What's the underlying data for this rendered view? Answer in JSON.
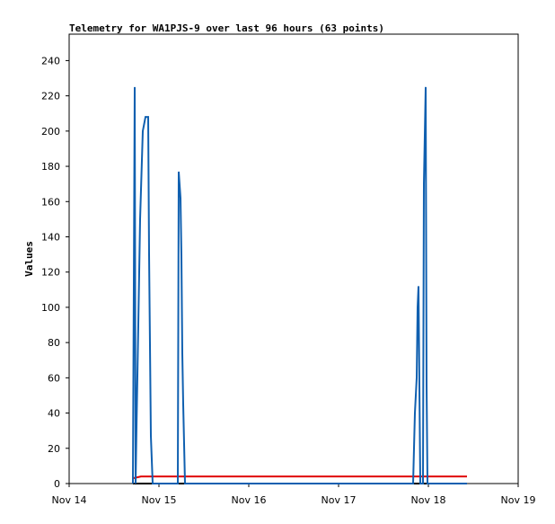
{
  "chart_data": {
    "type": "line",
    "title": "Telemetry for WA1PJS-9 over last 96 hours (63 points)",
    "y_label": "Values",
    "xlim": [
      0,
      5
    ],
    "xticks": [
      {
        "value": 0,
        "label": "Nov 14"
      },
      {
        "value": 1,
        "label": "Nov 15"
      },
      {
        "value": 2,
        "label": "Nov 16"
      },
      {
        "value": 3,
        "label": "Nov 17"
      },
      {
        "value": 4,
        "label": "Nov 18"
      },
      {
        "value": 5,
        "label": "Nov 19"
      }
    ],
    "ylim": [
      0,
      255
    ],
    "yticks": [
      0,
      20,
      40,
      60,
      80,
      100,
      120,
      140,
      160,
      180,
      200,
      220,
      240
    ],
    "series": [
      {
        "color": "#000000",
        "x": [
          0.71,
          4.43
        ],
        "values": [
          0,
          0
        ]
      },
      {
        "color": "#e00000",
        "x": [
          0.71,
          0.8,
          4.43
        ],
        "values": [
          3,
          4,
          4
        ]
      },
      {
        "color": "#1060b0",
        "x": [
          0.71,
          0.73,
          0.74,
          0.75,
          0.77,
          0.79,
          0.82,
          0.85,
          0.88,
          0.89,
          0.91,
          0.93,
          1.21,
          1.22,
          1.24,
          1.25,
          1.26,
          1.27,
          1.29,
          3.83,
          3.85,
          3.87,
          3.88,
          3.89,
          3.91,
          3.94,
          3.95,
          3.97,
          3.98,
          3.99,
          4.43
        ],
        "values": [
          0,
          225,
          0,
          32,
          90,
          150,
          200,
          208,
          208,
          130,
          27,
          0,
          0,
          177,
          162,
          130,
          74,
          45,
          0,
          0,
          40,
          60,
          100,
          112,
          0,
          0,
          170,
          225,
          56,
          0,
          0
        ]
      }
    ]
  }
}
